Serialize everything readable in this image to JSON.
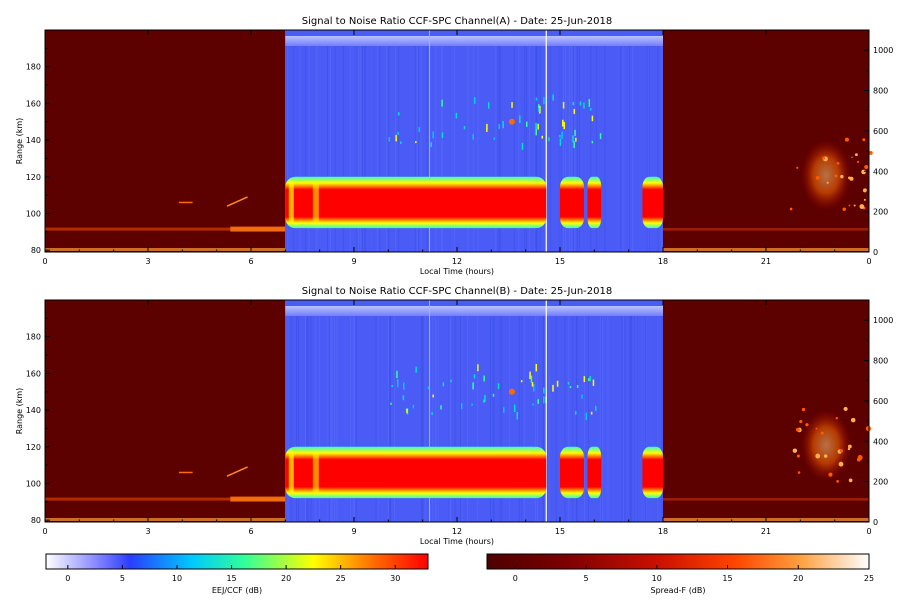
{
  "chart_data": [
    {
      "type": "heatmap",
      "title": "Signal to Noise Ratio CCF-SPC Channel(A) - Date: 25-Jun-2018",
      "xlabel": "Local Time (hours)",
      "ylabel": "Range (km)",
      "x_ticks": [
        "0",
        "3",
        "6",
        "9",
        "12",
        "15",
        "18",
        "21",
        "0"
      ],
      "y_ticks": [
        "80",
        "100",
        "120",
        "140",
        "160",
        "180"
      ],
      "y_right_ticks": [
        "0",
        "200",
        "400",
        "600",
        "800",
        "1000"
      ],
      "xlim": [
        0,
        24
      ],
      "ylim": [
        79,
        200
      ],
      "y_right_lim": [
        0,
        1100
      ],
      "day_section": {
        "start_hour": 7.0,
        "end_hour": 18.0,
        "colorbar": "EEJ/CCF (dB)",
        "layer_range_km": [
          92,
          120
        ],
        "layer_intervals_hours": [
          [
            7.0,
            14.6
          ],
          [
            15.0,
            15.7
          ],
          [
            15.8,
            16.2
          ],
          [
            17.4,
            18.0
          ]
        ],
        "layer_peak_snr_db": 31,
        "background_snr_db": 5
      },
      "night_section": {
        "colorbar": "Spread-F (dB)",
        "plume_hours": [
          22.0,
          23.5
        ],
        "plume_range_right_axis": [
          200,
          560
        ],
        "e_layer_range_km": [
          88,
          95
        ]
      }
    },
    {
      "type": "heatmap",
      "title": "Signal to Noise Ratio CCF-SPC Channel(B) - Date: 25-Jun-2018",
      "xlabel": "Local Time (hours)",
      "ylabel": "Range (km)",
      "x_ticks": [
        "0",
        "3",
        "6",
        "9",
        "12",
        "15",
        "18",
        "21",
        "0"
      ],
      "y_ticks": [
        "80",
        "100",
        "120",
        "140",
        "160",
        "180"
      ],
      "y_right_ticks": [
        "0",
        "200",
        "400",
        "600",
        "800",
        "1000"
      ],
      "xlim": [
        0,
        24
      ],
      "ylim": [
        79,
        200
      ],
      "y_right_lim": [
        0,
        1100
      ],
      "day_section": {
        "start_hour": 7.0,
        "end_hour": 18.0,
        "colorbar": "EEJ/CCF (dB)",
        "layer_range_km": [
          92,
          120
        ],
        "layer_intervals_hours": [
          [
            7.0,
            14.6
          ],
          [
            15.0,
            15.7
          ],
          [
            15.8,
            16.2
          ],
          [
            17.4,
            18.0
          ]
        ],
        "layer_peak_snr_db": 31,
        "background_snr_db": 5
      },
      "night_section": {
        "colorbar": "Spread-F (dB)",
        "plume_hours": [
          22.0,
          23.5
        ],
        "plume_range_right_axis": [
          200,
          560
        ],
        "e_layer_range_km": [
          88,
          95
        ]
      }
    }
  ],
  "colorbars": [
    {
      "label": "EEJ/CCF (dB)",
      "ticks": [
        "0",
        "5",
        "10",
        "15",
        "20",
        "25",
        "30"
      ],
      "range": [
        -2,
        33
      ],
      "colors": [
        "#ffffff",
        "#7f7fff",
        "#2a3dff",
        "#00c8ff",
        "#33ff99",
        "#ffff00",
        "#ff6600",
        "#ff0000"
      ]
    },
    {
      "label": "Spread-F (dB)",
      "ticks": [
        "0",
        "5",
        "10",
        "15",
        "20",
        "25"
      ],
      "range": [
        -2,
        25
      ],
      "colors": [
        "#5a0000",
        "#8f0000",
        "#cc1000",
        "#ff4500",
        "#ff9a3c",
        "#ffd9a0",
        "#ffffff"
      ]
    }
  ]
}
